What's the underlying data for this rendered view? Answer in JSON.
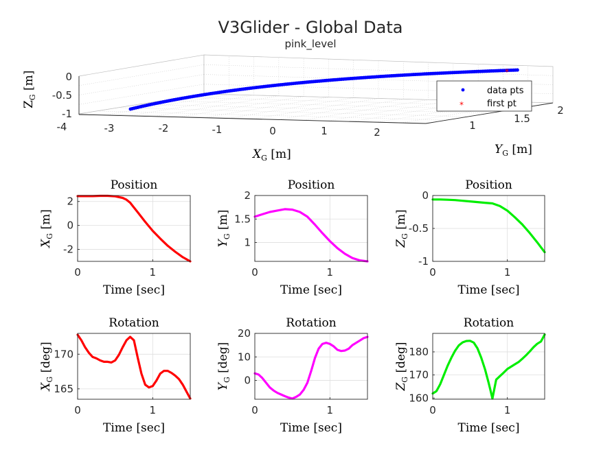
{
  "figure": {
    "title": "V3Glider - Global Data",
    "subtitle": "pink_level"
  },
  "chart_data": [
    {
      "id": "global3d",
      "type": "scatter",
      "title": "",
      "xlabel": "X_G [m]",
      "ylabel": "Y_G [m]",
      "zlabel": "Z_G [m]",
      "xlim": [
        -4,
        3
      ],
      "ylim": [
        0.5,
        2
      ],
      "zlim": [
        -1,
        0
      ],
      "xticks": [
        "-4",
        "-3",
        "-2",
        "-1",
        "0",
        "1",
        "2"
      ],
      "yticks": [
        "1",
        "1.5",
        "2"
      ],
      "zticks": [
        "0",
        "-0.5",
        "-1"
      ],
      "legend": {
        "placement": "top-right",
        "entries": [
          "data pts",
          "first pt"
        ]
      },
      "series": [
        {
          "name": "data pts",
          "color": "#0000ff",
          "marker": "dot"
        },
        {
          "name": "first pt",
          "color": "#ff0000",
          "marker": "asterisk"
        }
      ],
      "grid": true
    },
    {
      "id": "posX",
      "type": "line",
      "title": "Position",
      "xlabel": "Time [sec]",
      "ylabel": "X_G [m]",
      "color": "#ff0000",
      "xlim": [
        0,
        1.5
      ],
      "ylim": [
        -3,
        2.5
      ],
      "xticks": [
        0,
        1
      ],
      "yticks": [
        2,
        0,
        -2
      ],
      "x": [
        0,
        0.1,
        0.2,
        0.3,
        0.4,
        0.5,
        0.6,
        0.65,
        0.7,
        0.75,
        0.8,
        0.9,
        1.0,
        1.1,
        1.2,
        1.3,
        1.4,
        1.5
      ],
      "y": [
        2.45,
        2.45,
        2.45,
        2.47,
        2.47,
        2.43,
        2.3,
        2.15,
        1.9,
        1.5,
        1.1,
        0.3,
        -0.45,
        -1.1,
        -1.7,
        -2.2,
        -2.65,
        -3.0
      ],
      "grid": true
    },
    {
      "id": "posY",
      "type": "line",
      "title": "Position",
      "xlabel": "Time [sec]",
      "ylabel": "Y_G [m]",
      "color": "#ff00ff",
      "xlim": [
        0,
        1.5
      ],
      "ylim": [
        0.6,
        2
      ],
      "xticks": [
        0,
        1
      ],
      "yticks": [
        2,
        1.5,
        1
      ],
      "x": [
        0,
        0.1,
        0.2,
        0.3,
        0.4,
        0.5,
        0.6,
        0.7,
        0.8,
        0.9,
        1.0,
        1.1,
        1.2,
        1.3,
        1.4,
        1.5
      ],
      "y": [
        1.55,
        1.6,
        1.65,
        1.68,
        1.71,
        1.7,
        1.65,
        1.55,
        1.38,
        1.2,
        1.03,
        0.88,
        0.76,
        0.67,
        0.62,
        0.6
      ],
      "grid": true
    },
    {
      "id": "posZ",
      "type": "line",
      "title": "Position",
      "xlabel": "Time [sec]",
      "ylabel": "Z_G [m]",
      "color": "#00ee00",
      "xlim": [
        0,
        1.5
      ],
      "ylim": [
        -1,
        0
      ],
      "xticks": [
        0,
        1
      ],
      "yticks": [
        0,
        -0.5,
        -1
      ],
      "x": [
        0,
        0.1,
        0.2,
        0.3,
        0.4,
        0.5,
        0.6,
        0.7,
        0.8,
        0.9,
        1.0,
        1.1,
        1.2,
        1.3,
        1.4,
        1.5
      ],
      "y": [
        -0.06,
        -0.06,
        -0.065,
        -0.07,
        -0.08,
        -0.09,
        -0.1,
        -0.11,
        -0.12,
        -0.16,
        -0.23,
        -0.33,
        -0.44,
        -0.57,
        -0.71,
        -0.86
      ],
      "grid": true
    },
    {
      "id": "rotX",
      "type": "line",
      "title": "Rotation",
      "xlabel": "Time [sec]",
      "ylabel": "X_G [deg]",
      "color": "#ff0000",
      "xlim": [
        0,
        1.5
      ],
      "ylim": [
        163.5,
        173
      ],
      "xticks": [
        0,
        1
      ],
      "yticks": [
        170,
        165
      ],
      "x": [
        0,
        0.05,
        0.1,
        0.15,
        0.2,
        0.25,
        0.3,
        0.35,
        0.4,
        0.45,
        0.5,
        0.55,
        0.6,
        0.65,
        0.7,
        0.75,
        0.8,
        0.85,
        0.9,
        0.95,
        1.0,
        1.05,
        1.1,
        1.15,
        1.2,
        1.25,
        1.3,
        1.35,
        1.4,
        1.45,
        1.5
      ],
      "y": [
        172.8,
        172.0,
        171.0,
        170.2,
        169.6,
        169.4,
        169.1,
        168.9,
        168.9,
        168.8,
        169.1,
        169.9,
        171.0,
        172.0,
        172.5,
        172.0,
        169.5,
        167.2,
        165.6,
        165.2,
        165.4,
        166.2,
        167.2,
        167.6,
        167.6,
        167.3,
        166.9,
        166.4,
        165.6,
        164.6,
        163.6
      ],
      "grid": true
    },
    {
      "id": "rotY",
      "type": "line",
      "title": "Rotation",
      "xlabel": "Time [sec]",
      "ylabel": "Y_G [deg]",
      "color": "#ff00ff",
      "xlim": [
        0,
        1.5
      ],
      "ylim": [
        -8,
        20
      ],
      "xticks": [
        0,
        1
      ],
      "yticks": [
        20,
        10,
        0
      ],
      "x": [
        0,
        0.05,
        0.1,
        0.15,
        0.2,
        0.25,
        0.3,
        0.35,
        0.4,
        0.45,
        0.5,
        0.55,
        0.6,
        0.65,
        0.7,
        0.75,
        0.8,
        0.85,
        0.9,
        0.95,
        1.0,
        1.05,
        1.1,
        1.15,
        1.2,
        1.25,
        1.3,
        1.35,
        1.4,
        1.45,
        1.5
      ],
      "y": [
        3,
        2.5,
        1.0,
        -1.0,
        -3.0,
        -4.3,
        -5.3,
        -6.0,
        -6.7,
        -7.3,
        -7.7,
        -7.0,
        -6.0,
        -4.0,
        -1.0,
        4.0,
        9.5,
        13.5,
        15.5,
        16.0,
        15.5,
        14.5,
        13.0,
        12.5,
        12.7,
        13.5,
        15.0,
        16.0,
        17.0,
        18.0,
        18.5
      ],
      "grid": true
    },
    {
      "id": "rotZ",
      "type": "line",
      "title": "Rotation",
      "xlabel": "Time [sec]",
      "ylabel": "Z_G [deg]",
      "color": "#00ee00",
      "xlim": [
        0,
        1.5
      ],
      "ylim": [
        159.5,
        188
      ],
      "xticks": [
        0,
        1
      ],
      "yticks": [
        180,
        170,
        160
      ],
      "x": [
        0,
        0.05,
        0.1,
        0.15,
        0.2,
        0.25,
        0.3,
        0.35,
        0.4,
        0.45,
        0.5,
        0.55,
        0.6,
        0.65,
        0.7,
        0.75,
        0.78,
        0.8,
        0.85,
        0.9,
        0.95,
        1.0,
        1.05,
        1.1,
        1.15,
        1.2,
        1.25,
        1.3,
        1.35,
        1.4,
        1.45,
        1.5
      ],
      "y": [
        162,
        163,
        166,
        170,
        174,
        177.5,
        180.5,
        182.8,
        184.1,
        184.7,
        184.8,
        184.0,
        181.5,
        177.5,
        172.5,
        166.5,
        162.5,
        159.8,
        168,
        169.5,
        171.0,
        172.6,
        173.6,
        174.6,
        175.6,
        177.0,
        178.5,
        180.2,
        182.0,
        183.5,
        184.5,
        187.5
      ],
      "grid": true
    }
  ]
}
